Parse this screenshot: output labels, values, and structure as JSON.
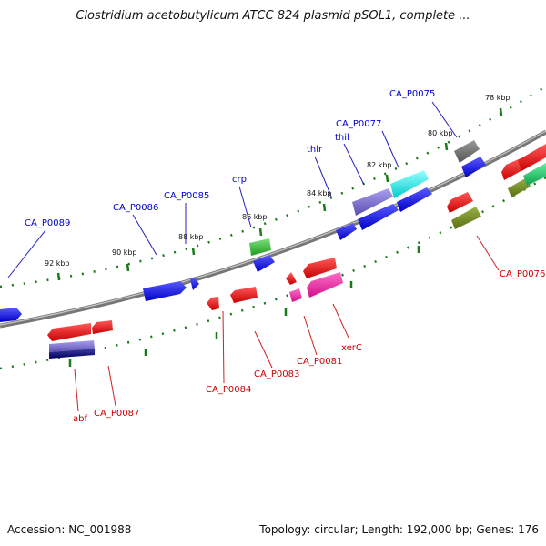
{
  "title": "Clostridium acetobutylicum ATCC 824 plasmid pSOL1, complete ...",
  "footer": {
    "accession": "Accession: NC_001988",
    "summary": "Topology: circular; Length: 192,000 bp; Genes: 176"
  },
  "colors": {
    "forward_label": "#0000cc",
    "reverse_label": "#cc0000",
    "backbone": "#808080",
    "tick": "#1a7a1a"
  },
  "ticks": [
    {
      "label": "78 kbp"
    },
    {
      "label": "80 kbp"
    },
    {
      "label": "82 kbp"
    },
    {
      "label": "84 kbp"
    },
    {
      "label": "86 kbp"
    },
    {
      "label": "88 kbp"
    },
    {
      "label": "90 kbp"
    },
    {
      "label": "92 kbp"
    }
  ],
  "forward_labels": [
    {
      "text": "CA_P0089"
    },
    {
      "text": "CA_P0086"
    },
    {
      "text": "CA_P0085"
    },
    {
      "text": "crp"
    },
    {
      "text": "thlr"
    },
    {
      "text": "thil"
    },
    {
      "text": "CA_P0077"
    },
    {
      "text": "CA_P0075"
    }
  ],
  "reverse_labels": [
    {
      "text": "abf"
    },
    {
      "text": "CA_P0087"
    },
    {
      "text": "CA_P0084"
    },
    {
      "text": "CA_P0083"
    },
    {
      "text": "CA_P0081"
    },
    {
      "text": "xerC"
    },
    {
      "text": "CA_P0076"
    }
  ]
}
